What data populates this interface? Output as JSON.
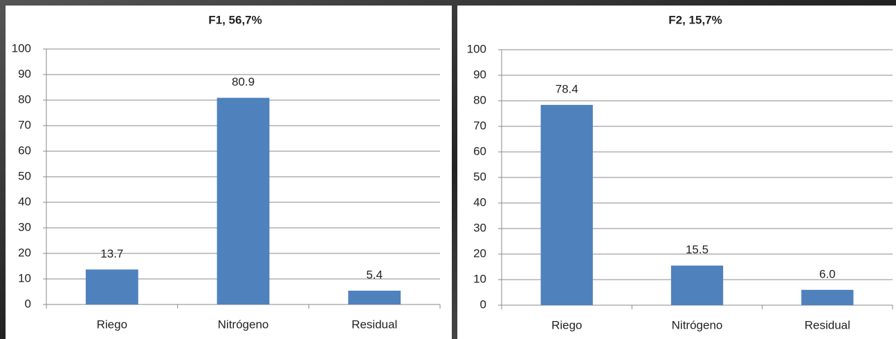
{
  "chart_data": [
    {
      "type": "bar",
      "title": "F1, 56,7%",
      "categories": [
        "Riego",
        "Nitrógeno",
        "Residual"
      ],
      "values": [
        13.7,
        80.9,
        5.4
      ],
      "value_labels": [
        "13.7",
        "80.9",
        "5.4"
      ],
      "color": "#4f81bd",
      "ylim": [
        0,
        100
      ],
      "yticks": [
        0,
        10,
        20,
        30,
        40,
        50,
        60,
        70,
        80,
        90,
        100
      ],
      "grid": true
    },
    {
      "type": "bar",
      "title": "F2, 15,7%",
      "categories": [
        "Riego",
        "Nitrógeno",
        "Residual"
      ],
      "values": [
        78.4,
        15.5,
        6.0
      ],
      "value_labels": [
        "78.4",
        "15.5",
        "6.0"
      ],
      "color": "#4f81bd",
      "ylim": [
        0,
        100
      ],
      "yticks": [
        0,
        10,
        20,
        30,
        40,
        50,
        60,
        70,
        80,
        90,
        100
      ],
      "grid": true
    }
  ]
}
